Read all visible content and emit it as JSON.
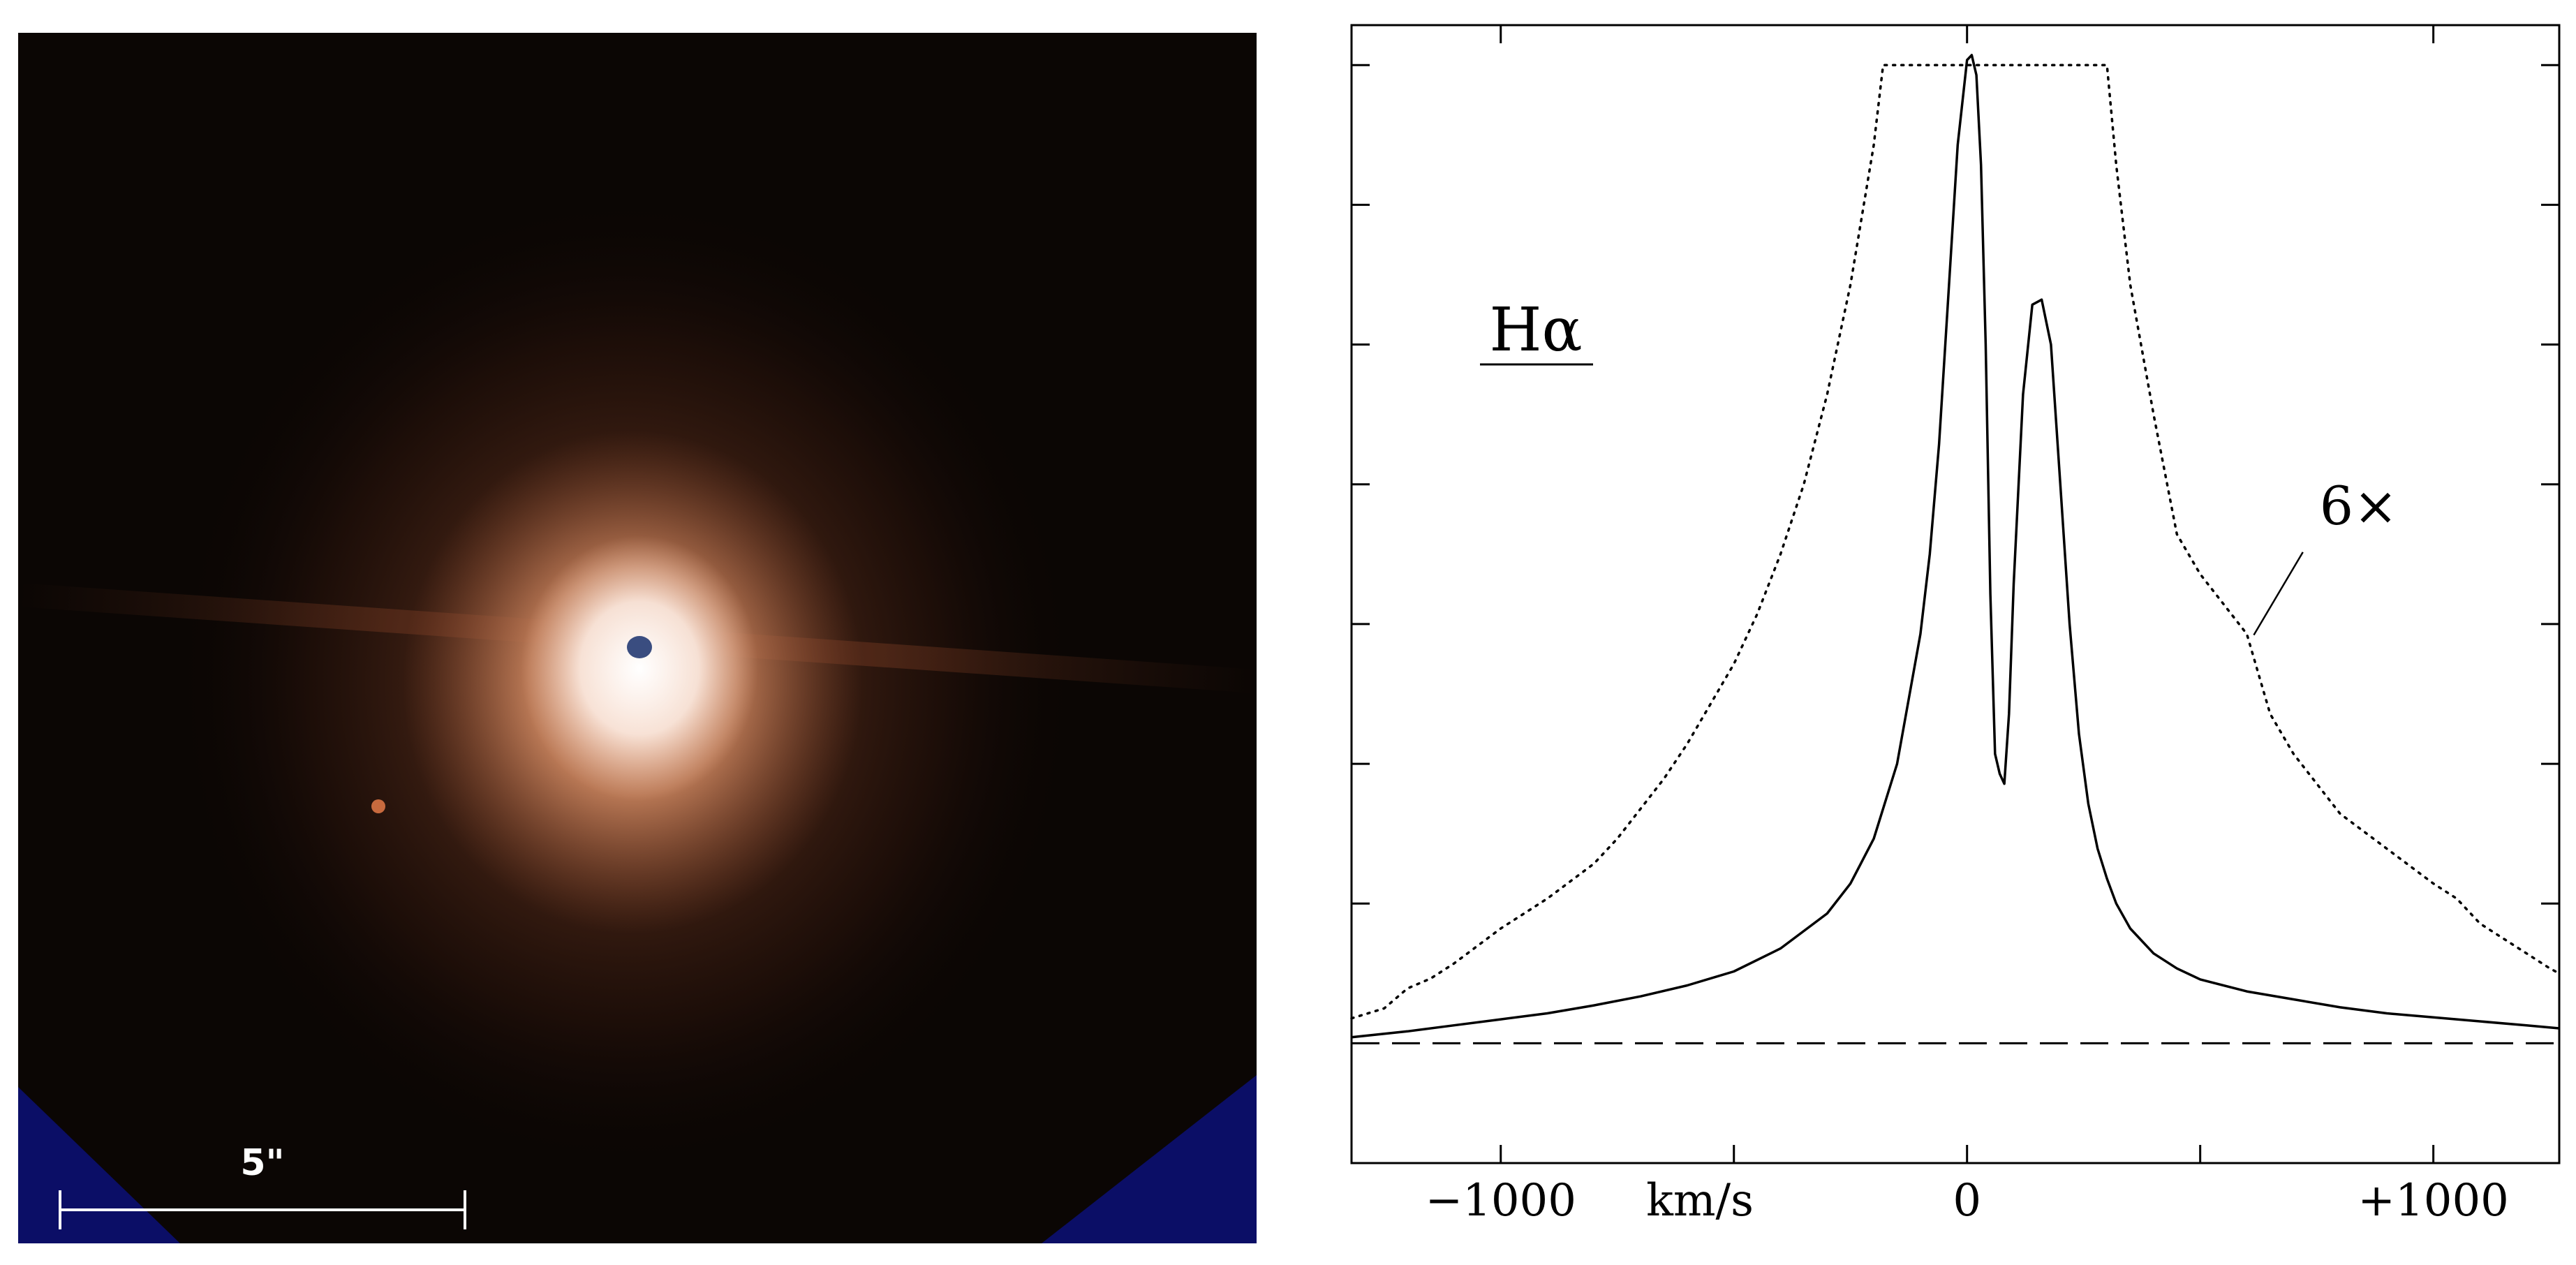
{
  "image_panel": {
    "scale_bar_label": "5\"",
    "colors": {
      "background": "#0b0604",
      "nebula_glow": "#c87a55",
      "core": "#fff6f0",
      "corner_fill": "#0b0e66",
      "scale_bar": "#ffffff"
    }
  },
  "chart_data": {
    "type": "line",
    "title": "Hα",
    "xlabel": "km/s",
    "ylabel": "",
    "xlim": [
      -1320,
      1270
    ],
    "ylim": [
      -0.12,
      1.02
    ],
    "xticks": [
      -1000,
      0,
      1000
    ],
    "xtick_labels": [
      "−1000",
      "0",
      "+1000"
    ],
    "yticks": [
      0.14,
      0.28,
      0.42,
      0.56,
      0.7,
      0.84,
      0.98
    ],
    "grid": false,
    "annotations": [
      {
        "text": "6×",
        "x": 840,
        "y": 0.52,
        "points_to": {
          "x": 600,
          "y": 0.43
        }
      }
    ],
    "baseline": {
      "y": 0,
      "style": "dashed"
    },
    "series": [
      {
        "name": "",
        "style": "solid",
        "x": [
          -1320,
          -1200,
          -1100,
          -1000,
          -900,
          -800,
          -700,
          -600,
          -500,
          -400,
          -300,
          -250,
          -200,
          -150,
          -100,
          -80,
          -60,
          -40,
          -20,
          0,
          10,
          20,
          30,
          40,
          50,
          60,
          70,
          80,
          90,
          100,
          120,
          140,
          160,
          180,
          200,
          220,
          240,
          260,
          280,
          300,
          320,
          350,
          400,
          450,
          500,
          600,
          700,
          800,
          900,
          1000,
          1100,
          1200,
          1270
        ],
        "y": [
          0.006,
          0.012,
          0.018,
          0.024,
          0.03,
          0.038,
          0.047,
          0.058,
          0.072,
          0.095,
          0.13,
          0.16,
          0.205,
          0.28,
          0.41,
          0.49,
          0.6,
          0.75,
          0.9,
          0.985,
          0.99,
          0.97,
          0.88,
          0.7,
          0.45,
          0.29,
          0.27,
          0.26,
          0.33,
          0.46,
          0.65,
          0.74,
          0.745,
          0.7,
          0.56,
          0.42,
          0.31,
          0.24,
          0.195,
          0.165,
          0.14,
          0.115,
          0.09,
          0.075,
          0.064,
          0.052,
          0.044,
          0.036,
          0.03,
          0.026,
          0.022,
          0.018,
          0.015
        ]
      },
      {
        "name": "",
        "style": "dotted",
        "x": [
          -1320,
          -1250,
          -1200,
          -1150,
          -1100,
          -1000,
          -900,
          -800,
          -750,
          -700,
          -650,
          -600,
          -550,
          -500,
          -450,
          -400,
          -350,
          -300,
          -250,
          -200,
          -180,
          300,
          320,
          350,
          400,
          450,
          500,
          550,
          600,
          650,
          700,
          750,
          800,
          900,
          1000,
          1050,
          1100,
          1150,
          1200,
          1250,
          1270
        ],
        "y": [
          0.025,
          0.035,
          0.055,
          0.065,
          0.08,
          0.115,
          0.145,
          0.18,
          0.205,
          0.235,
          0.265,
          0.3,
          0.34,
          0.38,
          0.43,
          0.49,
          0.56,
          0.65,
          0.76,
          0.9,
          0.98,
          0.98,
          0.88,
          0.76,
          0.63,
          0.51,
          0.47,
          0.44,
          0.41,
          0.33,
          0.29,
          0.26,
          0.23,
          0.195,
          0.16,
          0.145,
          0.12,
          0.105,
          0.09,
          0.075,
          0.07
        ]
      }
    ]
  }
}
